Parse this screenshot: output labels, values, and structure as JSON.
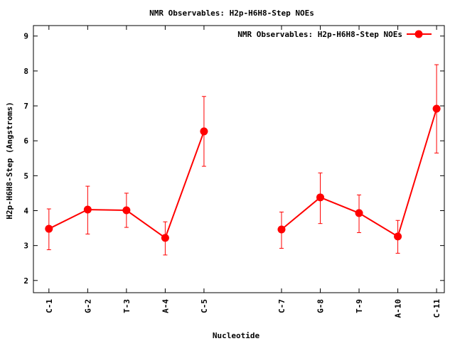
{
  "chart_data": {
    "type": "line",
    "title": "NMR Observables: H2p-H6H8-Step NOEs",
    "xlabel": "Nucleotide",
    "ylabel": "H2p-H6H8-Step (Angstroms)",
    "ylim": [
      1.65,
      9.3
    ],
    "yticks": [
      2,
      3,
      4,
      5,
      6,
      7,
      8,
      9
    ],
    "xlim": [
      0.6,
      11.2
    ],
    "categories": [
      "C-1",
      "G-2",
      "T-3",
      "A-4",
      "C-5",
      "C-7",
      "G-8",
      "T-9",
      "A-10",
      "C-11"
    ],
    "category_positions": [
      1,
      2,
      3,
      4,
      5,
      7,
      8,
      9,
      10,
      11
    ],
    "grid": false,
    "legend_position": "top-right",
    "series": [
      {
        "name": "NMR Observables: H2p-H6H8-Step NOEs",
        "color": "#ff0000",
        "segments": [
          [
            {
              "x": 1,
              "y": 3.48,
              "ylow": 2.88,
              "yhigh": 4.05
            },
            {
              "x": 2,
              "y": 4.03,
              "ylow": 3.33,
              "yhigh": 4.7
            },
            {
              "x": 3,
              "y": 4.01,
              "ylow": 3.52,
              "yhigh": 4.5
            },
            {
              "x": 4,
              "y": 3.22,
              "ylow": 2.73,
              "yhigh": 3.68
            },
            {
              "x": 5,
              "y": 6.27,
              "ylow": 5.27,
              "yhigh": 7.27
            }
          ],
          [
            {
              "x": 7,
              "y": 3.46,
              "ylow": 2.92,
              "yhigh": 3.96
            },
            {
              "x": 8,
              "y": 4.38,
              "ylow": 3.63,
              "yhigh": 5.08
            },
            {
              "x": 9,
              "y": 3.93,
              "ylow": 3.37,
              "yhigh": 4.45
            },
            {
              "x": 10,
              "y": 3.26,
              "ylow": 2.78,
              "yhigh": 3.72
            },
            {
              "x": 11,
              "y": 6.92,
              "ylow": 5.65,
              "yhigh": 8.18
            }
          ]
        ]
      }
    ]
  }
}
